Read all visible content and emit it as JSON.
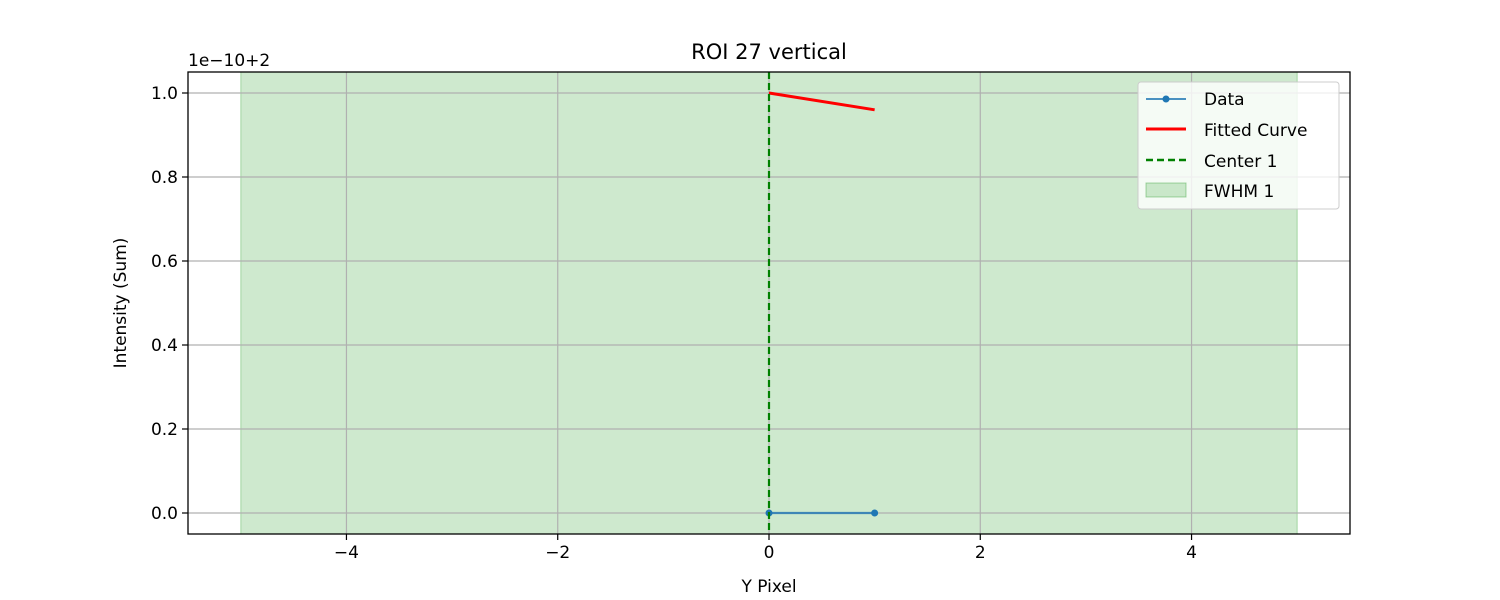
{
  "chart_data": {
    "type": "line",
    "title": "ROI 27 vertical",
    "xlabel": "Y Pixel",
    "ylabel": "Intensity (Sum)",
    "y_offset_label": "1e−10+2",
    "xlim": [
      -5.5,
      5.5
    ],
    "ylim": [
      -0.05,
      1.05
    ],
    "grid": true,
    "legend_position": "top-right",
    "x_ticks": [
      -4,
      -2,
      0,
      2,
      4
    ],
    "x_tick_labels": [
      "−4",
      "−2",
      "0",
      "2",
      "4"
    ],
    "y_ticks": [
      0.0,
      0.2,
      0.4,
      0.6,
      0.8,
      1.0
    ],
    "y_tick_labels": [
      "0.0",
      "0.2",
      "0.4",
      "0.6",
      "0.8",
      "1.0"
    ],
    "series": [
      {
        "name": "Data",
        "kind": "line-marker",
        "color": "#1f77b4",
        "x": [
          0,
          1
        ],
        "y": [
          0.0,
          0.0
        ]
      },
      {
        "name": "Fitted Curve",
        "kind": "line",
        "color": "#ff0000",
        "x": [
          0,
          1
        ],
        "y": [
          1.0,
          0.96
        ]
      },
      {
        "name": "Center 1",
        "kind": "vline-dashed",
        "color": "#008000",
        "x": 0
      },
      {
        "name": "FWHM 1",
        "kind": "vspan",
        "color": "#2ca02c",
        "x_range": [
          -5,
          5
        ]
      }
    ]
  }
}
